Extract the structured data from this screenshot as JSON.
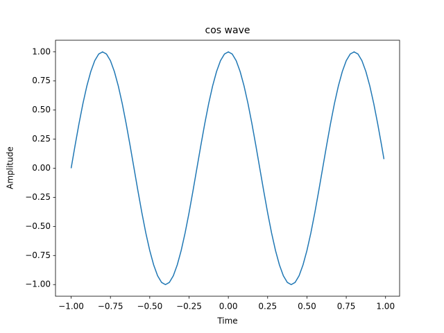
{
  "chart_data": {
    "type": "line",
    "title": "cos wave",
    "x_label": "Time",
    "y_label": "Amplitude",
    "x": [
      -1,
      -0.975,
      -0.95,
      -0.925,
      -0.9,
      -0.875,
      -0.85,
      -0.825,
      -0.8,
      -0.775,
      -0.75,
      -0.725,
      -0.7,
      -0.675,
      -0.65,
      -0.625,
      -0.6,
      -0.575,
      -0.55,
      -0.525,
      -0.5,
      -0.475,
      -0.45,
      -0.425,
      -0.4,
      -0.375,
      -0.35,
      -0.325,
      -0.3,
      -0.275,
      -0.25,
      -0.225,
      -0.2,
      -0.175,
      -0.15,
      -0.125,
      -0.1,
      -0.075,
      -0.05,
      -0.025,
      0,
      0.025,
      0.05,
      0.075,
      0.1,
      0.125,
      0.15,
      0.175,
      0.2,
      0.225,
      0.25,
      0.275,
      0.3,
      0.325,
      0.35,
      0.375,
      0.4,
      0.425,
      0.45,
      0.475,
      0.5,
      0.525,
      0.55,
      0.575,
      0.6,
      0.625,
      0.65,
      0.675,
      0.7,
      0.725,
      0.75,
      0.775,
      0.8,
      0.825,
      0.85,
      0.875,
      0.9,
      0.925,
      0.95,
      0.975,
      0.99
    ],
    "series": [
      {
        "color": "#1f77b4",
        "values": [
          0,
          0.195,
          0.383,
          0.556,
          0.707,
          0.831,
          0.924,
          0.981,
          1,
          0.981,
          0.924,
          0.831,
          0.707,
          0.556,
          0.383,
          0.195,
          0,
          -0.195,
          -0.383,
          -0.556,
          -0.707,
          -0.831,
          -0.924,
          -0.981,
          -1,
          -0.981,
          -0.924,
          -0.831,
          -0.707,
          -0.556,
          -0.383,
          -0.195,
          0,
          0.195,
          0.383,
          0.556,
          0.707,
          0.831,
          0.924,
          0.981,
          1,
          0.981,
          0.924,
          0.831,
          0.707,
          0.556,
          0.383,
          0.195,
          0,
          -0.195,
          -0.383,
          -0.556,
          -0.707,
          -0.831,
          -0.924,
          -0.981,
          -1,
          -0.981,
          -0.924,
          -0.831,
          -0.707,
          -0.556,
          -0.383,
          -0.195,
          0,
          0.195,
          0.383,
          0.556,
          0.707,
          0.831,
          0.924,
          0.981,
          1,
          0.981,
          0.924,
          0.831,
          0.707,
          0.556,
          0.383,
          0.195,
          0.078
        ]
      }
    ],
    "xlim": [
      -1.0995,
      1.0895
    ],
    "ylim": [
      -1.1,
      1.1
    ],
    "xticks": [
      {
        "value": -1,
        "label": "−1.00"
      },
      {
        "value": -0.75,
        "label": "−0.75"
      },
      {
        "value": -0.5,
        "label": "−0.50"
      },
      {
        "value": -0.25,
        "label": "−0.25"
      },
      {
        "value": 0,
        "label": "0.00"
      },
      {
        "value": 0.25,
        "label": "0.25"
      },
      {
        "value": 0.5,
        "label": "0.50"
      },
      {
        "value": 0.75,
        "label": "0.75"
      },
      {
        "value": 1,
        "label": "1.00"
      }
    ],
    "yticks": [
      {
        "value": -1,
        "label": "−1.00"
      },
      {
        "value": -0.75,
        "label": "−0.75"
      },
      {
        "value": -0.5,
        "label": "−0.50"
      },
      {
        "value": -0.25,
        "label": "−0.25"
      },
      {
        "value": 0,
        "label": "0.00"
      },
      {
        "value": 0.25,
        "label": "0.25"
      },
      {
        "value": 0.5,
        "label": "0.50"
      },
      {
        "value": 0.75,
        "label": "0.75"
      },
      {
        "value": 1,
        "label": "1.00"
      }
    ],
    "grid": false
  }
}
